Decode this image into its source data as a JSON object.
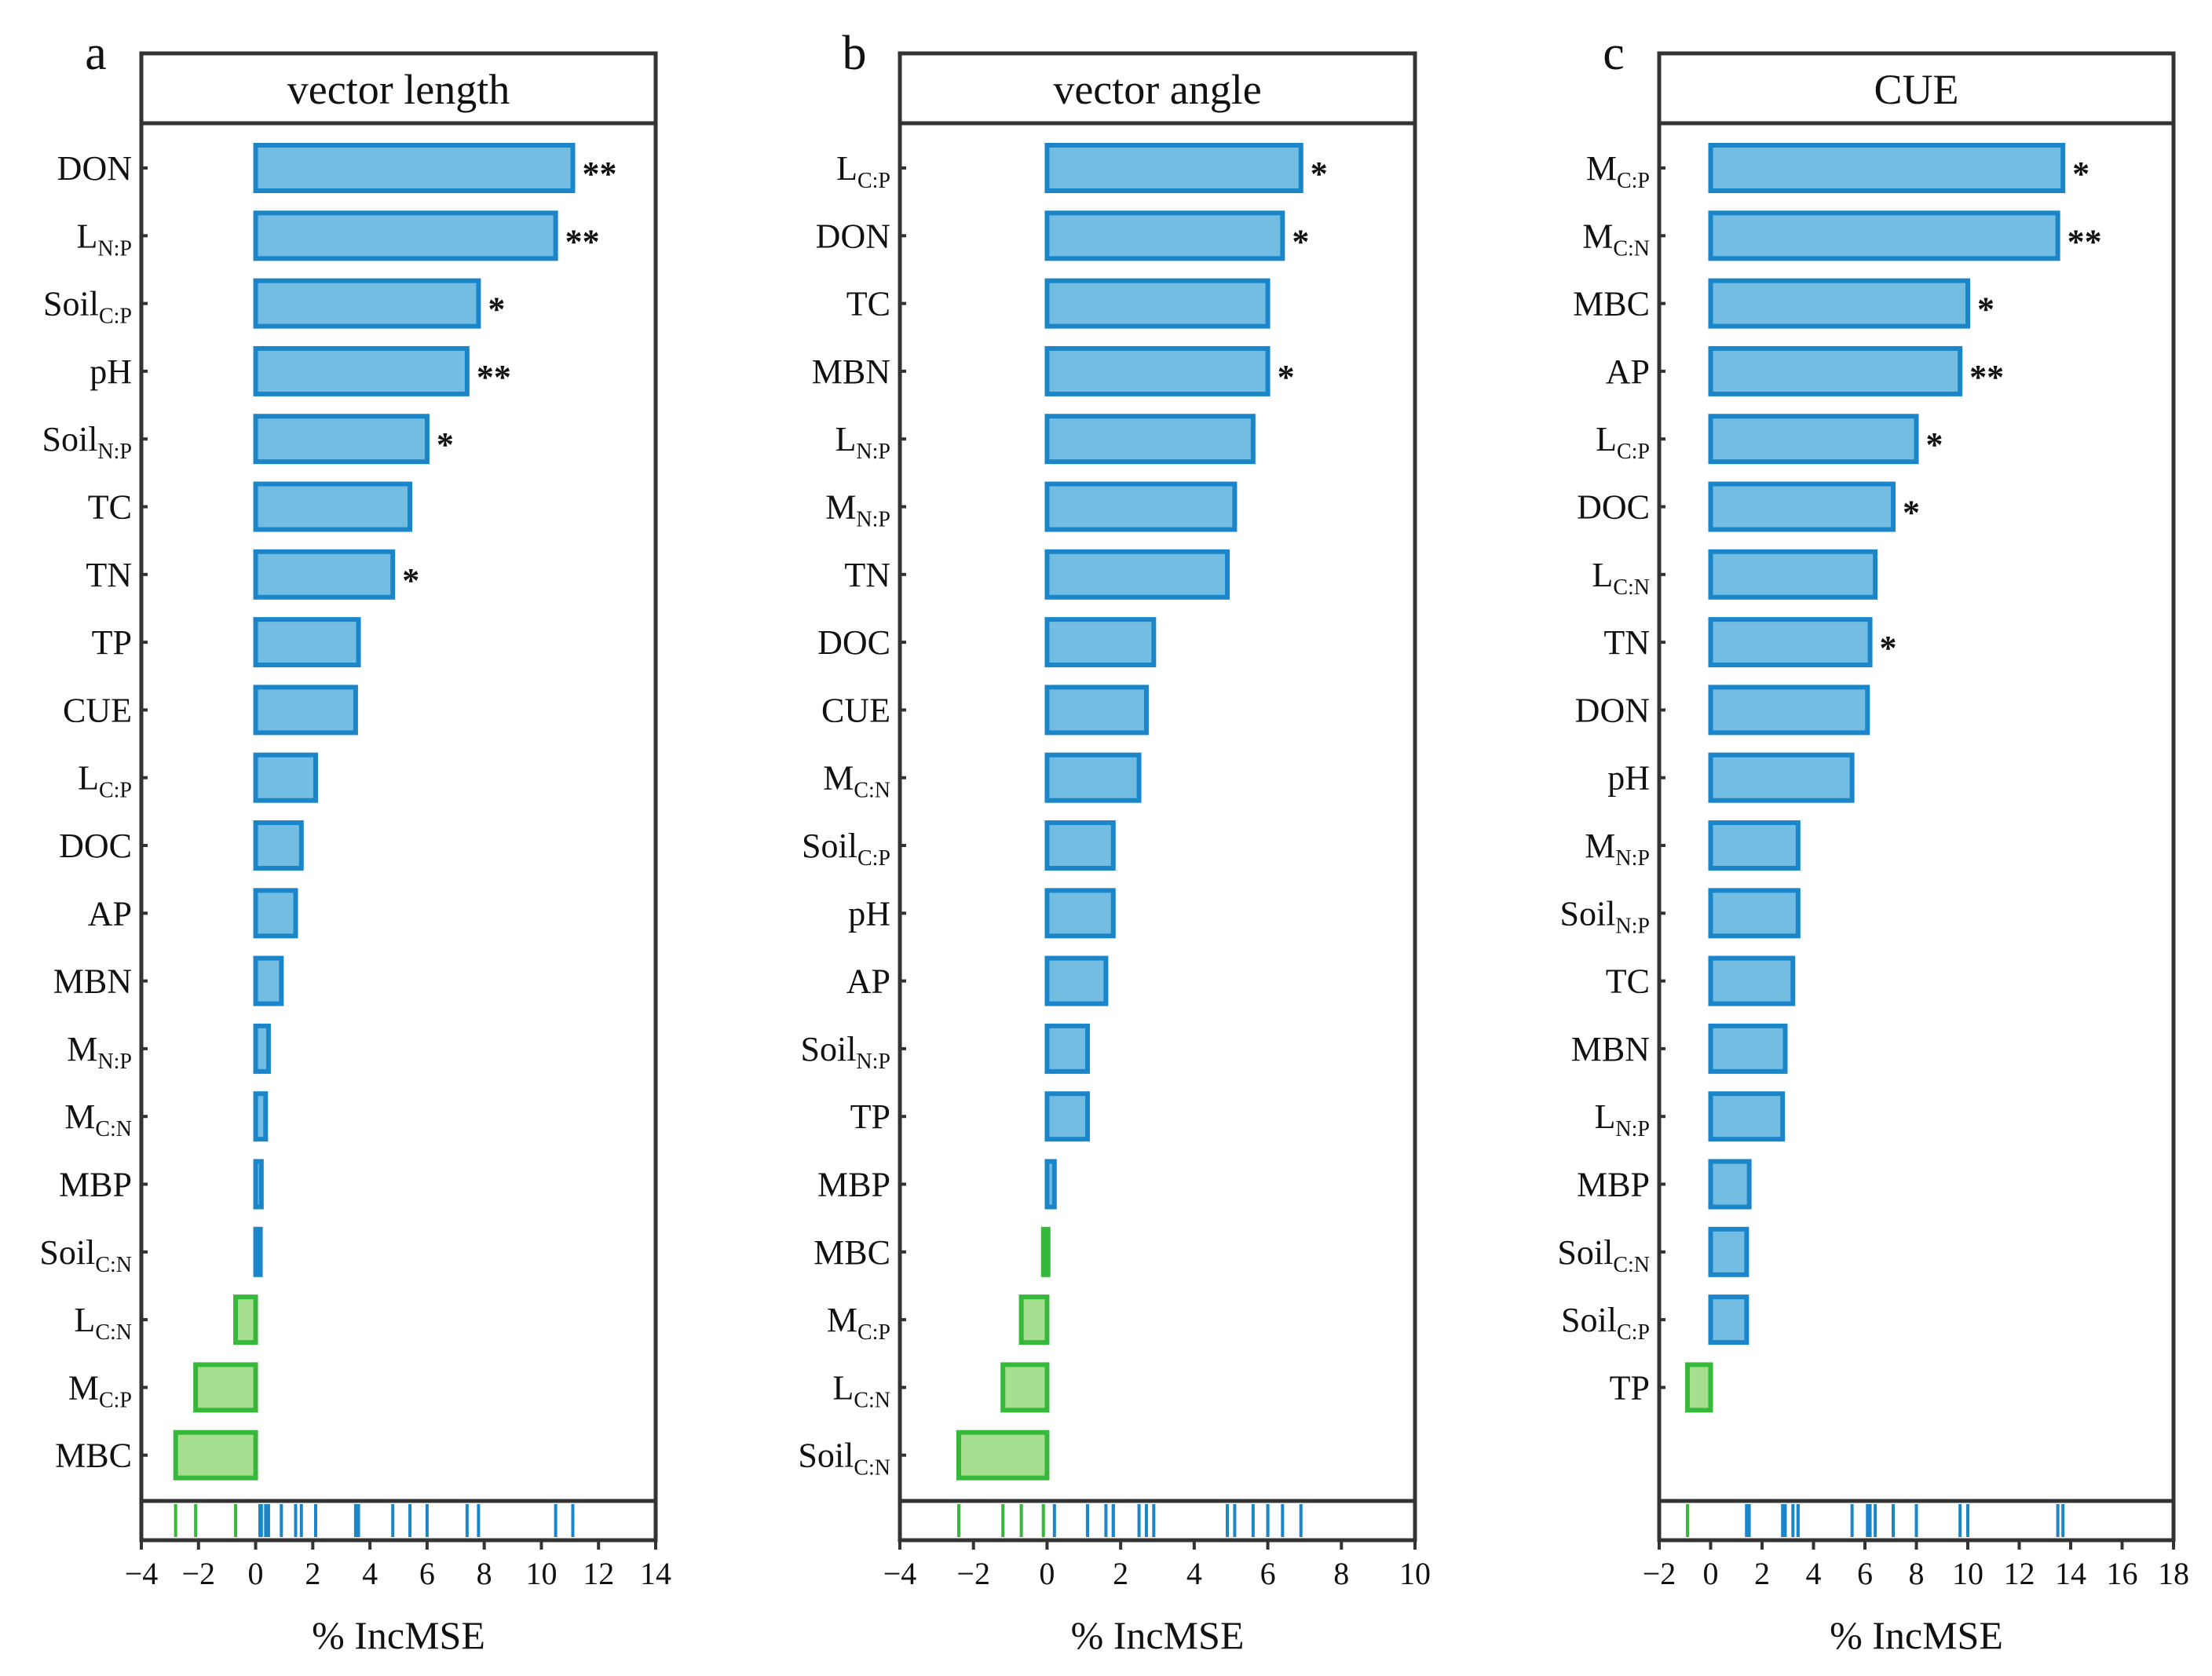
{
  "chart_data": [
    {
      "type": "bar",
      "orientation": "horizontal",
      "panel": "a",
      "title": "vector length",
      "xlabel": "% IncMSE",
      "xlim": [
        -4,
        14
      ],
      "xticks": [
        -4,
        -2,
        0,
        2,
        4,
        6,
        8,
        10,
        12,
        14
      ],
      "bars": [
        {
          "name": "DON",
          "sub": "",
          "value": 11.1,
          "sig": "**"
        },
        {
          "name": "L",
          "sub": "N:P",
          "value": 10.5,
          "sig": "**"
        },
        {
          "name": "Soil",
          "sub": "C:P",
          "value": 7.8,
          "sig": "*"
        },
        {
          "name": "pH",
          "sub": "",
          "value": 7.4,
          "sig": "**"
        },
        {
          "name": "Soil",
          "sub": "N:P",
          "value": 6.0,
          "sig": "*"
        },
        {
          "name": "TC",
          "sub": "",
          "value": 5.4,
          "sig": ""
        },
        {
          "name": "TN",
          "sub": "",
          "value": 4.8,
          "sig": "*"
        },
        {
          "name": "TP",
          "sub": "",
          "value": 3.6,
          "sig": ""
        },
        {
          "name": "CUE",
          "sub": "",
          "value": 3.5,
          "sig": ""
        },
        {
          "name": "L",
          "sub": "C:P",
          "value": 2.1,
          "sig": ""
        },
        {
          "name": "DOC",
          "sub": "",
          "value": 1.6,
          "sig": ""
        },
        {
          "name": "AP",
          "sub": "",
          "value": 1.4,
          "sig": ""
        },
        {
          "name": "MBN",
          "sub": "",
          "value": 0.9,
          "sig": ""
        },
        {
          "name": "M",
          "sub": "N:P",
          "value": 0.45,
          "sig": ""
        },
        {
          "name": "M",
          "sub": "C:N",
          "value": 0.35,
          "sig": ""
        },
        {
          "name": "MBP",
          "sub": "",
          "value": 0.2,
          "sig": ""
        },
        {
          "name": "Soil",
          "sub": "C:N",
          "value": 0.15,
          "sig": ""
        },
        {
          "name": "L",
          "sub": "C:N",
          "value": -0.7,
          "sig": ""
        },
        {
          "name": "M",
          "sub": "C:P",
          "value": -2.1,
          "sig": ""
        },
        {
          "name": "MBC",
          "sub": "",
          "value": -2.8,
          "sig": ""
        }
      ]
    },
    {
      "type": "bar",
      "orientation": "horizontal",
      "panel": "b",
      "title": "vector angle",
      "xlabel": "% IncMSE",
      "xlim": [
        -4,
        10
      ],
      "xticks": [
        -4,
        -2,
        0,
        2,
        4,
        6,
        8,
        10
      ],
      "bars": [
        {
          "name": "L",
          "sub": "C:P",
          "value": 6.9,
          "sig": "*"
        },
        {
          "name": "DON",
          "sub": "",
          "value": 6.4,
          "sig": "*"
        },
        {
          "name": "TC",
          "sub": "",
          "value": 6.0,
          "sig": ""
        },
        {
          "name": "MBN",
          "sub": "",
          "value": 6.0,
          "sig": "*"
        },
        {
          "name": "L",
          "sub": "N:P",
          "value": 5.6,
          "sig": ""
        },
        {
          "name": "M",
          "sub": "N:P",
          "value": 5.1,
          "sig": ""
        },
        {
          "name": "TN",
          "sub": "",
          "value": 4.9,
          "sig": ""
        },
        {
          "name": "DOC",
          "sub": "",
          "value": 2.9,
          "sig": ""
        },
        {
          "name": "CUE",
          "sub": "",
          "value": 2.7,
          "sig": ""
        },
        {
          "name": "M",
          "sub": "C:N",
          "value": 2.5,
          "sig": ""
        },
        {
          "name": "Soil",
          "sub": "C:P",
          "value": 1.8,
          "sig": ""
        },
        {
          "name": "pH",
          "sub": "",
          "value": 1.8,
          "sig": ""
        },
        {
          "name": "AP",
          "sub": "",
          "value": 1.6,
          "sig": ""
        },
        {
          "name": "Soil",
          "sub": "N:P",
          "value": 1.1,
          "sig": ""
        },
        {
          "name": "TP",
          "sub": "",
          "value": 1.1,
          "sig": ""
        },
        {
          "name": "MBP",
          "sub": "",
          "value": 0.2,
          "sig": ""
        },
        {
          "name": "MBC",
          "sub": "",
          "value": -0.1,
          "sig": ""
        },
        {
          "name": "M",
          "sub": "C:P",
          "value": -0.7,
          "sig": ""
        },
        {
          "name": "L",
          "sub": "C:N",
          "value": -1.2,
          "sig": ""
        },
        {
          "name": "Soil",
          "sub": "C:N",
          "value": -2.4,
          "sig": ""
        }
      ]
    },
    {
      "type": "bar",
      "orientation": "horizontal",
      "panel": "c",
      "title": "CUE",
      "xlabel": "% IncMSE",
      "xlim": [
        -2,
        18
      ],
      "xticks": [
        -2,
        0,
        2,
        4,
        6,
        8,
        10,
        12,
        14,
        16,
        18
      ],
      "bars": [
        {
          "name": "M",
          "sub": "C:P",
          "value": 13.7,
          "sig": "*"
        },
        {
          "name": "M",
          "sub": "C:N",
          "value": 13.5,
          "sig": "**"
        },
        {
          "name": "MBC",
          "sub": "",
          "value": 10.0,
          "sig": "*"
        },
        {
          "name": "AP",
          "sub": "",
          "value": 9.7,
          "sig": "**"
        },
        {
          "name": "L",
          "sub": "C:P",
          "value": 8.0,
          "sig": "*"
        },
        {
          "name": "DOC",
          "sub": "",
          "value": 7.1,
          "sig": "*"
        },
        {
          "name": "L",
          "sub": "C:N",
          "value": 6.4,
          "sig": ""
        },
        {
          "name": "TN",
          "sub": "",
          "value": 6.2,
          "sig": "*"
        },
        {
          "name": "DON",
          "sub": "",
          "value": 6.1,
          "sig": ""
        },
        {
          "name": "pH",
          "sub": "",
          "value": 5.5,
          "sig": ""
        },
        {
          "name": "M",
          "sub": "N:P",
          "value": 3.4,
          "sig": ""
        },
        {
          "name": "Soil",
          "sub": "N:P",
          "value": 3.4,
          "sig": ""
        },
        {
          "name": "TC",
          "sub": "",
          "value": 3.2,
          "sig": ""
        },
        {
          "name": "MBN",
          "sub": "",
          "value": 2.9,
          "sig": ""
        },
        {
          "name": "L",
          "sub": "N:P",
          "value": 2.8,
          "sig": ""
        },
        {
          "name": "MBP",
          "sub": "",
          "value": 1.5,
          "sig": ""
        },
        {
          "name": "Soil",
          "sub": "C:N",
          "value": 1.4,
          "sig": ""
        },
        {
          "name": "Soil",
          "sub": "C:P",
          "value": 1.4,
          "sig": ""
        },
        {
          "name": "TP",
          "sub": "",
          "value": -0.9,
          "sig": ""
        }
      ]
    }
  ]
}
